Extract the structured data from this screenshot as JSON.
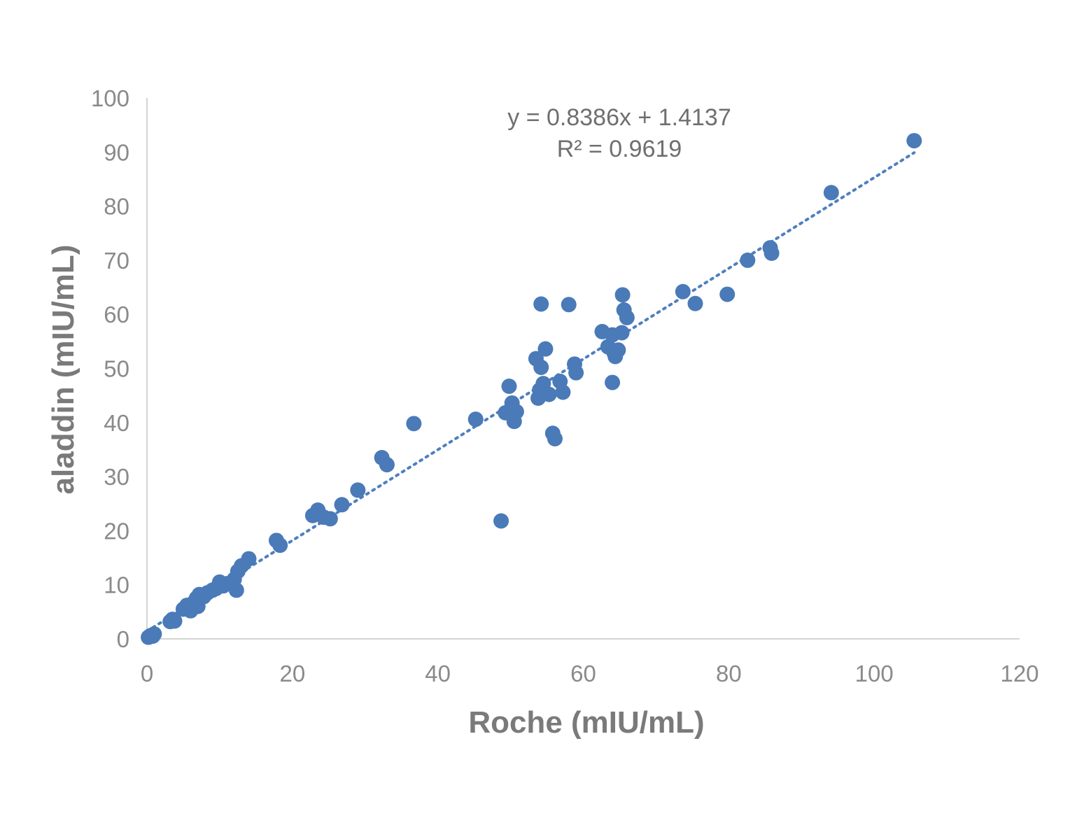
{
  "chart_data": {
    "type": "scatter",
    "xlabel": "Roche (mIU/mL)",
    "ylabel": "aladdin (mIU/mL)",
    "xlim": [
      0,
      120
    ],
    "ylim": [
      0,
      100
    ],
    "x_ticks": [
      "0",
      "20",
      "40",
      "60",
      "80",
      "100",
      "120"
    ],
    "y_ticks": [
      "0",
      "10",
      "20",
      "30",
      "40",
      "50",
      "60",
      "70",
      "80",
      "90",
      "100"
    ],
    "grid": false,
    "legend": "none",
    "annotations": {
      "equation": "y = 0.8386x + 1.4137",
      "r_squared": "R² = 0.9619"
    },
    "trendline": {
      "slope": 0.8386,
      "intercept": 1.4137,
      "x_range": [
        0,
        105.5
      ],
      "style": "dotted"
    },
    "point_color": "#4a7ab8",
    "points": [
      [
        0.2,
        0.3
      ],
      [
        0.5,
        0.6
      ],
      [
        0.8,
        0.5
      ],
      [
        1.0,
        0.9
      ],
      [
        3.2,
        3.2
      ],
      [
        3.5,
        3.6
      ],
      [
        3.8,
        3.3
      ],
      [
        5.0,
        5.5
      ],
      [
        5.5,
        6.2
      ],
      [
        6.0,
        5.2
      ],
      [
        6.5,
        6.8
      ],
      [
        6.8,
        7.5
      ],
      [
        7.0,
        6.0
      ],
      [
        7.2,
        8.2
      ],
      [
        7.8,
        7.8
      ],
      [
        8.3,
        8.5
      ],
      [
        9.0,
        9.0
      ],
      [
        9.5,
        9.3
      ],
      [
        10.0,
        10.5
      ],
      [
        10.5,
        9.8
      ],
      [
        11.0,
        10.2
      ],
      [
        12.0,
        11.0
      ],
      [
        12.3,
        9.0
      ],
      [
        12.5,
        12.5
      ],
      [
        13.0,
        13.5
      ],
      [
        14.0,
        14.8
      ],
      [
        17.8,
        18.2
      ],
      [
        18.3,
        17.3
      ],
      [
        22.8,
        22.8
      ],
      [
        23.5,
        23.8
      ],
      [
        24.3,
        22.5
      ],
      [
        25.2,
        22.2
      ],
      [
        26.8,
        24.8
      ],
      [
        29.0,
        27.5
      ],
      [
        32.3,
        33.5
      ],
      [
        33.0,
        32.2
      ],
      [
        36.7,
        39.8
      ],
      [
        45.2,
        40.6
      ],
      [
        48.7,
        21.8
      ],
      [
        49.3,
        41.8
      ],
      [
        49.8,
        46.7
      ],
      [
        50.2,
        43.6
      ],
      [
        50.5,
        40.2
      ],
      [
        50.8,
        42.0
      ],
      [
        53.5,
        51.8
      ],
      [
        53.8,
        44.5
      ],
      [
        54.0,
        46.0
      ],
      [
        54.2,
        50.2
      ],
      [
        54.5,
        47.2
      ],
      [
        54.8,
        53.6
      ],
      [
        54.2,
        61.9
      ],
      [
        55.3,
        45.2
      ],
      [
        55.8,
        38.0
      ],
      [
        56.1,
        37.0
      ],
      [
        56.8,
        47.6
      ],
      [
        57.2,
        45.6
      ],
      [
        58.0,
        61.8
      ],
      [
        58.8,
        50.8
      ],
      [
        59.0,
        49.2
      ],
      [
        62.6,
        56.8
      ],
      [
        63.4,
        54.0
      ],
      [
        64.0,
        56.2
      ],
      [
        64.0,
        47.4
      ],
      [
        64.2,
        53.0
      ],
      [
        64.4,
        52.2
      ],
      [
        64.8,
        53.4
      ],
      [
        65.3,
        56.6
      ],
      [
        65.4,
        63.6
      ],
      [
        65.6,
        60.8
      ],
      [
        66.0,
        59.4
      ],
      [
        73.7,
        64.2
      ],
      [
        75.4,
        62.0
      ],
      [
        79.8,
        63.7
      ],
      [
        82.6,
        70.0
      ],
      [
        85.7,
        72.3
      ],
      [
        85.9,
        71.3
      ],
      [
        94.1,
        82.5
      ],
      [
        105.5,
        92.1
      ]
    ]
  }
}
